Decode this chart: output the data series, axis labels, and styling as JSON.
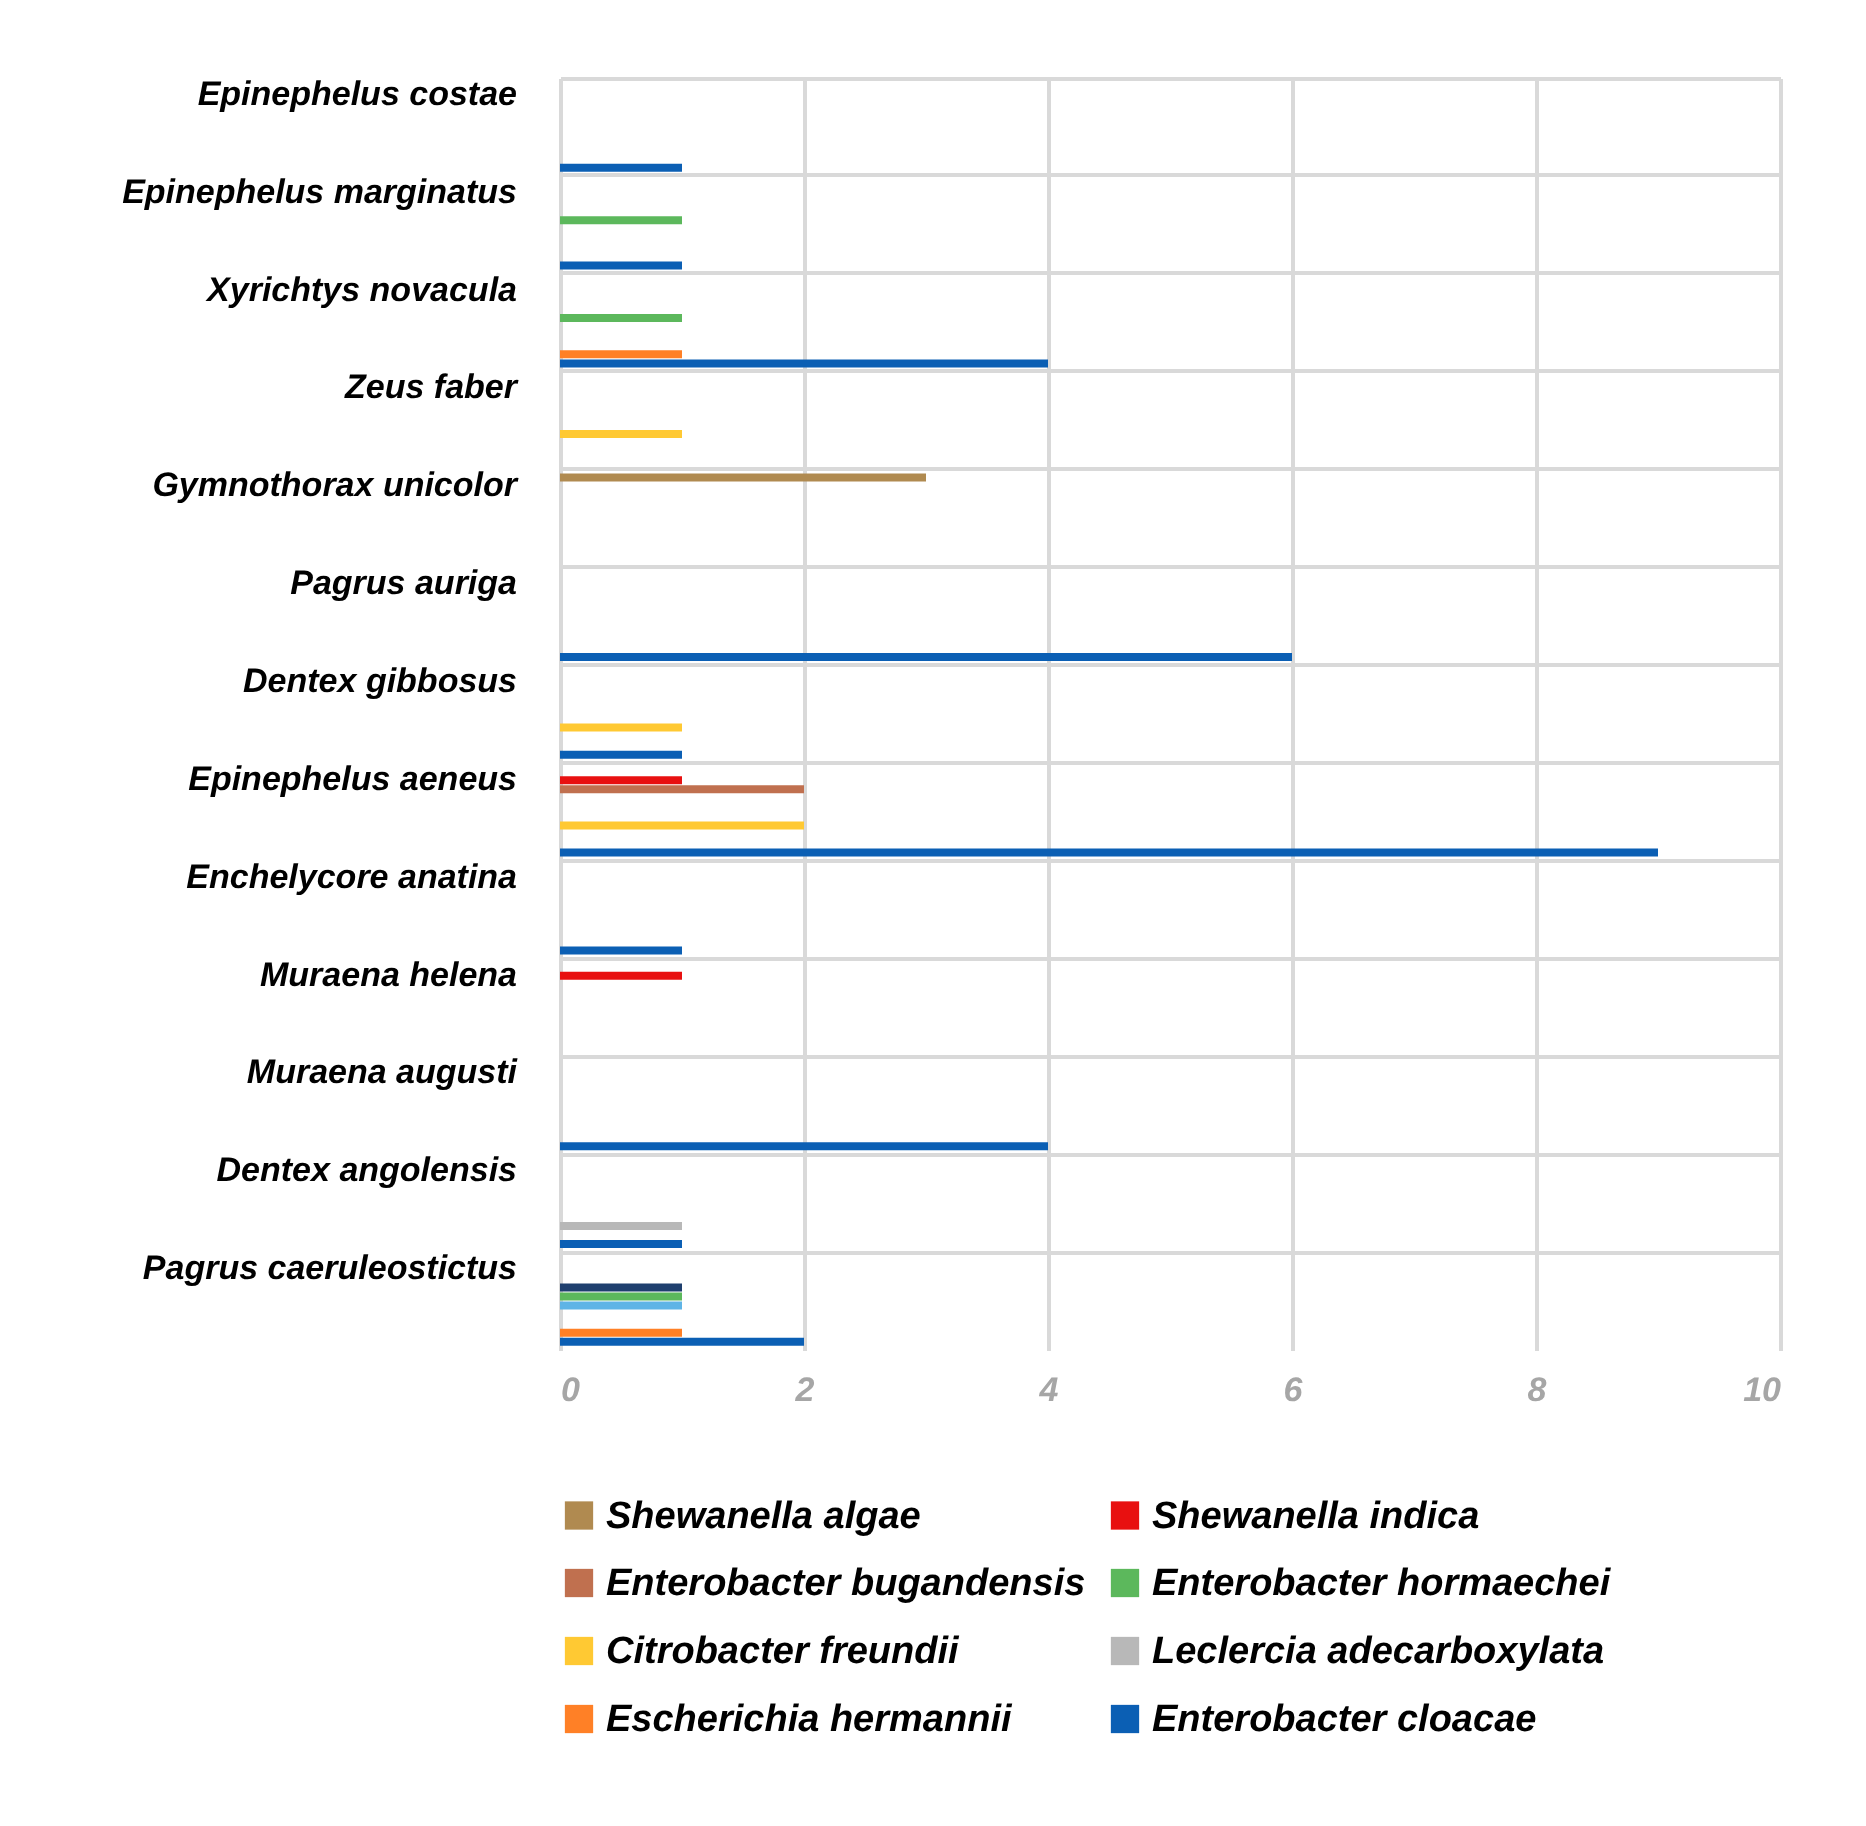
{
  "chart_data": {
    "type": "bar",
    "orientation": "horizontal",
    "categories": [
      "Epinephelus costae",
      "Epinephelus marginatus",
      "Xyrichtys novacula",
      "Zeus faber",
      "Gymnothorax unicolor",
      "Pagrus auriga",
      "Dentex gibbosus",
      "Epinephelus aeneus",
      "Enchelycore anatina",
      "Muraena helena",
      "Muraena augusti",
      "Dentex angolensis",
      "Pagrus caeruleostictus"
    ],
    "series": [
      {
        "name": "Shewanella algae",
        "color": "#b08a50",
        "values": [
          null,
          null,
          null,
          null,
          3,
          null,
          null,
          null,
          null,
          null,
          null,
          null,
          null
        ]
      },
      {
        "name": "Shewanella indica",
        "color": "#e81010",
        "values": [
          null,
          null,
          null,
          null,
          null,
          null,
          null,
          1,
          null,
          1,
          null,
          null,
          null
        ]
      },
      {
        "name": "Enterobacter bugandensis",
        "color": "#c0704f",
        "values": [
          null,
          null,
          null,
          null,
          null,
          null,
          null,
          2,
          null,
          null,
          null,
          null,
          null
        ]
      },
      {
        "color": "#1f3f6e",
        "values": [
          null,
          null,
          null,
          null,
          null,
          null,
          null,
          null,
          null,
          null,
          null,
          null,
          1
        ]
      },
      {
        "name": "Enterobacter hormaechei",
        "color": "#5cb85c",
        "values": [
          null,
          1,
          1,
          null,
          null,
          null,
          null,
          null,
          null,
          null,
          null,
          null,
          1
        ]
      },
      {
        "color": "#5fb4e6",
        "values": [
          null,
          null,
          null,
          null,
          null,
          null,
          null,
          null,
          null,
          null,
          null,
          null,
          1
        ]
      },
      {
        "name": "Citrobacter freundii",
        "color": "#ffc933",
        "values": [
          null,
          null,
          null,
          1,
          null,
          null,
          1,
          2,
          null,
          null,
          null,
          null,
          null
        ]
      },
      {
        "name": "Leclercia adecarboxylata",
        "color": "#b8b8b8",
        "values": [
          null,
          null,
          null,
          null,
          null,
          null,
          null,
          null,
          null,
          null,
          null,
          1,
          null
        ]
      },
      {
        "name": "Escherichia hermannii",
        "color": "#ff8026",
        "values": [
          null,
          null,
          1,
          null,
          null,
          null,
          null,
          null,
          null,
          null,
          null,
          null,
          1
        ]
      },
      {
        "name": "Enterobacter cloacae",
        "color": "#0b5fb4",
        "values": [
          1,
          1,
          4,
          null,
          null,
          6,
          1,
          9,
          1,
          null,
          4,
          1,
          2
        ]
      }
    ],
    "xlim": [
      0,
      10
    ],
    "xticks": [
      0,
      2,
      4,
      6,
      8,
      10
    ],
    "grid": true,
    "legend": "bottom"
  }
}
